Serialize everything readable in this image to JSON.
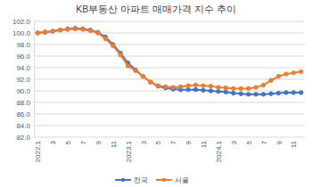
{
  "chart_data": {
    "type": "line",
    "title": "KB부동산 아파트 매매가격 지수 추이",
    "categories": [
      "2022.1",
      null,
      "3",
      null,
      "5",
      null,
      "7",
      null,
      "9",
      null,
      "11",
      null,
      "2023.1",
      null,
      "3",
      null,
      "5",
      null,
      "7",
      null,
      "9",
      null,
      "11",
      null,
      "2024.1",
      null,
      "3",
      null,
      "5",
      null,
      "7",
      null,
      "9",
      null,
      "11",
      null
    ],
    "series": [
      {
        "name": "전국",
        "color": "#4472c4",
        "marker": "circle",
        "values": [
          100.0,
          100.1,
          100.3,
          100.5,
          100.7,
          100.8,
          100.7,
          100.5,
          100.1,
          99.3,
          98.0,
          96.5,
          94.8,
          93.6,
          92.5,
          91.5,
          90.8,
          90.5,
          90.3,
          90.2,
          90.2,
          90.2,
          90.1,
          90.0,
          89.9,
          89.8,
          89.6,
          89.5,
          89.4,
          89.4,
          89.4,
          89.5,
          89.6,
          89.7,
          89.7,
          89.7
        ]
      },
      {
        "name": "서울",
        "color": "#ed7d31",
        "marker": "circle",
        "values": [
          100.0,
          100.2,
          100.3,
          100.5,
          100.6,
          100.7,
          100.6,
          100.4,
          100.0,
          99.0,
          97.8,
          96.2,
          94.3,
          93.5,
          92.5,
          91.5,
          90.9,
          90.7,
          90.6,
          90.7,
          90.9,
          91.0,
          90.9,
          90.8,
          90.6,
          90.5,
          90.4,
          90.4,
          90.4,
          90.6,
          91.0,
          91.8,
          92.5,
          92.9,
          93.1,
          93.3
        ]
      }
    ],
    "ylim": [
      82,
      102
    ],
    "yticks": [
      {
        "value": 82,
        "label": "82.0"
      },
      {
        "value": 84,
        "label": "84.0"
      },
      {
        "value": 86,
        "label": "86.0"
      },
      {
        "value": 88,
        "label": "88.0"
      },
      {
        "value": 90,
        "label": "90.0"
      },
      {
        "value": 92,
        "label": "92.0"
      },
      {
        "value": 94,
        "label": "94.0"
      },
      {
        "value": 96,
        "label": "96.0"
      },
      {
        "value": 98,
        "label": "98.0"
      },
      {
        "value": 100,
        "label": "100.0"
      },
      {
        "value": 102,
        "label": "102.0"
      }
    ],
    "grid": true,
    "legend": "bottom"
  }
}
